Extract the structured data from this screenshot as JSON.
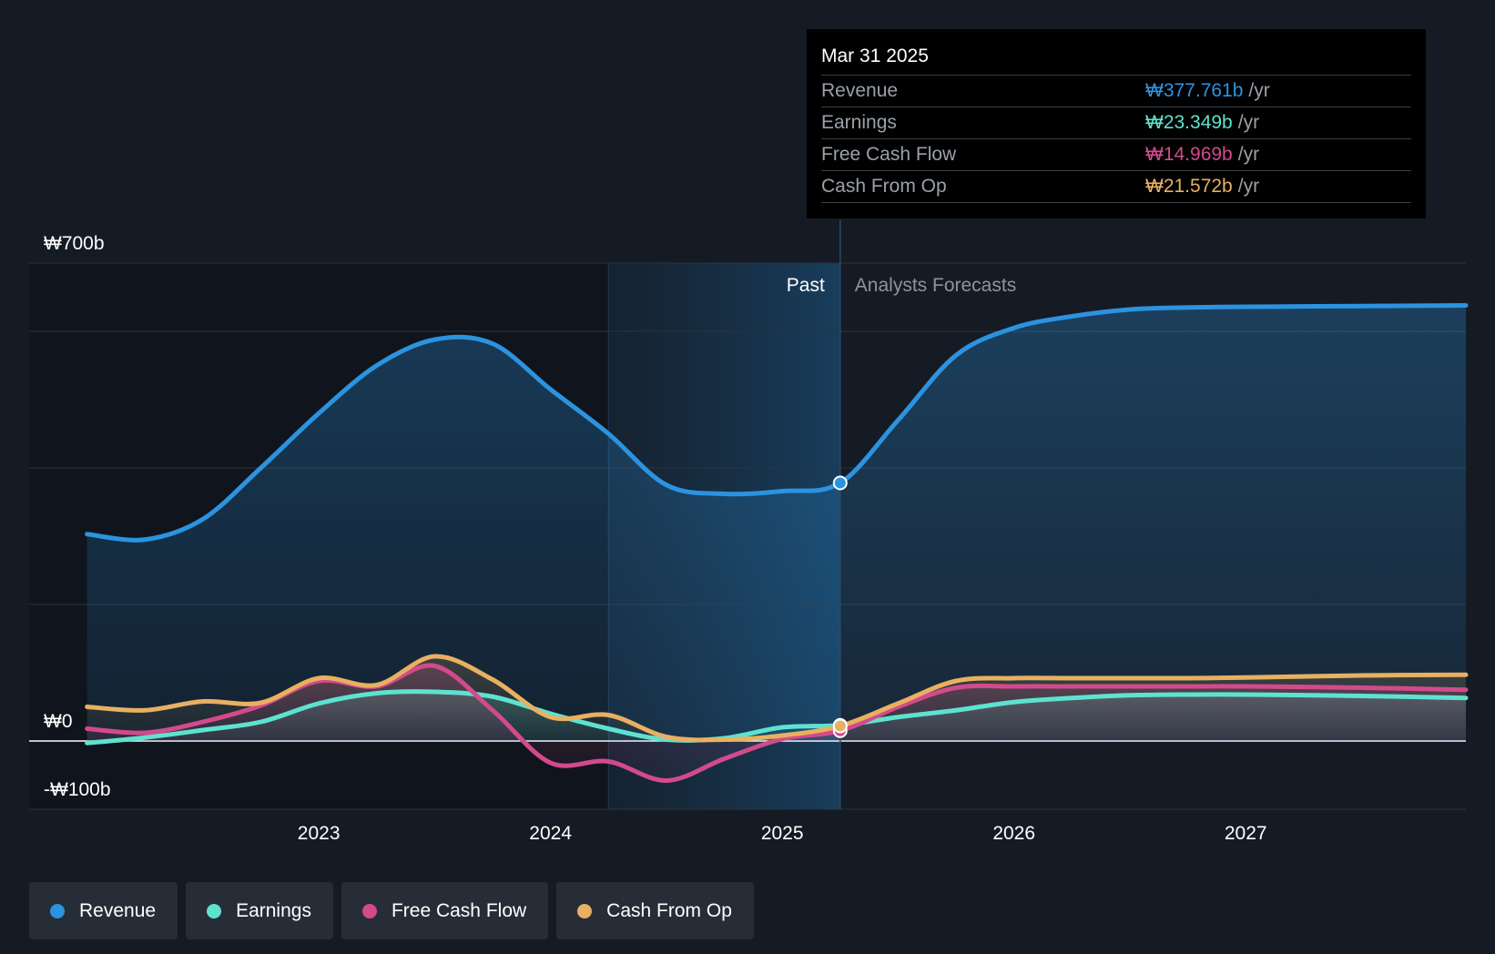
{
  "tooltip": {
    "date": "Mar 31 2025",
    "rows": [
      {
        "label": "Revenue",
        "value": "₩377.761b",
        "unit": "/yr",
        "color": "#2b93e0"
      },
      {
        "label": "Earnings",
        "value": "₩23.349b",
        "unit": "/yr",
        "color": "#5ee2d0"
      },
      {
        "label": "Free Cash Flow",
        "value": "₩14.969b",
        "unit": "/yr",
        "color": "#d34a8c"
      },
      {
        "label": "Cash From Op",
        "value": "₩21.572b",
        "unit": "/yr",
        "color": "#e8b060"
      }
    ]
  },
  "legend": [
    {
      "label": "Revenue",
      "color": "#2b93e0"
    },
    {
      "label": "Earnings",
      "color": "#5ee2d0"
    },
    {
      "label": "Free Cash Flow",
      "color": "#d34a8c"
    },
    {
      "label": "Cash From Op",
      "color": "#e8b060"
    }
  ],
  "chart_data": {
    "type": "line",
    "title": "",
    "section_labels": {
      "past": "Past",
      "forecast": "Analysts Forecasts"
    },
    "y_tick_labels": [
      {
        "value": 700,
        "label": "₩700b"
      },
      {
        "value": 0,
        "label": "₩0"
      },
      {
        "value": -100,
        "label": "-₩100b"
      }
    ],
    "x_tick_labels": [
      {
        "value": 2023.0,
        "label": "2023"
      },
      {
        "value": 2024.0,
        "label": "2024"
      },
      {
        "value": 2025.0,
        "label": "2025"
      },
      {
        "value": 2026.0,
        "label": "2026"
      },
      {
        "value": 2027.0,
        "label": "2027"
      }
    ],
    "xlim": [
      2021.75,
      2027.95
    ],
    "ylim": [
      -100,
      700
    ],
    "grid_lines": [
      700,
      600,
      400,
      200,
      0,
      -100
    ],
    "past_shade_start": 2024.25,
    "past_end": 2025.25,
    "highlight_date": 2025.25,
    "series": [
      {
        "name": "Revenue",
        "color": "#2b93e0",
        "area": true,
        "points": [
          [
            2022.0,
            303
          ],
          [
            2022.25,
            295
          ],
          [
            2022.5,
            325
          ],
          [
            2022.75,
            400
          ],
          [
            2023.0,
            480
          ],
          [
            2023.25,
            550
          ],
          [
            2023.5,
            588
          ],
          [
            2023.75,
            582
          ],
          [
            2024.0,
            515
          ],
          [
            2024.25,
            450
          ],
          [
            2024.5,
            375
          ],
          [
            2024.75,
            362
          ],
          [
            2025.0,
            366
          ],
          [
            2025.25,
            378
          ],
          [
            2025.5,
            470
          ],
          [
            2025.75,
            565
          ],
          [
            2026.0,
            605
          ],
          [
            2026.25,
            622
          ],
          [
            2026.5,
            632
          ],
          [
            2026.75,
            635
          ],
          [
            2027.0,
            636
          ],
          [
            2027.5,
            637
          ],
          [
            2027.95,
            638
          ]
        ]
      },
      {
        "name": "Earnings",
        "color": "#5ee2d0",
        "area": true,
        "points": [
          [
            2022.0,
            -3
          ],
          [
            2022.25,
            5
          ],
          [
            2022.5,
            16
          ],
          [
            2022.75,
            28
          ],
          [
            2023.0,
            55
          ],
          [
            2023.25,
            70
          ],
          [
            2023.5,
            72
          ],
          [
            2023.75,
            65
          ],
          [
            2024.0,
            40
          ],
          [
            2024.25,
            18
          ],
          [
            2024.5,
            2
          ],
          [
            2024.75,
            4
          ],
          [
            2025.0,
            20
          ],
          [
            2025.25,
            23
          ],
          [
            2025.5,
            35
          ],
          [
            2025.75,
            45
          ],
          [
            2026.0,
            57
          ],
          [
            2026.25,
            63
          ],
          [
            2026.5,
            67
          ],
          [
            2026.75,
            68
          ],
          [
            2027.0,
            68
          ],
          [
            2027.5,
            66
          ],
          [
            2027.95,
            63
          ]
        ]
      },
      {
        "name": "Free Cash Flow",
        "color": "#d34a8c",
        "area": true,
        "points": [
          [
            2022.0,
            18
          ],
          [
            2022.25,
            12
          ],
          [
            2022.5,
            28
          ],
          [
            2022.75,
            52
          ],
          [
            2023.0,
            88
          ],
          [
            2023.25,
            80
          ],
          [
            2023.5,
            110
          ],
          [
            2023.75,
            45
          ],
          [
            2024.0,
            -32
          ],
          [
            2024.25,
            -30
          ],
          [
            2024.5,
            -58
          ],
          [
            2024.75,
            -26
          ],
          [
            2025.0,
            3
          ],
          [
            2025.25,
            15
          ],
          [
            2025.5,
            50
          ],
          [
            2025.75,
            78
          ],
          [
            2026.0,
            80
          ],
          [
            2026.25,
            80
          ],
          [
            2026.5,
            80
          ],
          [
            2026.75,
            80
          ],
          [
            2027.0,
            80
          ],
          [
            2027.5,
            78
          ],
          [
            2027.95,
            75
          ]
        ]
      },
      {
        "name": "Cash From Op",
        "color": "#e8b060",
        "area": true,
        "points": [
          [
            2022.0,
            50
          ],
          [
            2022.25,
            45
          ],
          [
            2022.5,
            58
          ],
          [
            2022.75,
            56
          ],
          [
            2023.0,
            92
          ],
          [
            2023.25,
            82
          ],
          [
            2023.5,
            124
          ],
          [
            2023.75,
            90
          ],
          [
            2024.0,
            35
          ],
          [
            2024.25,
            38
          ],
          [
            2024.5,
            6
          ],
          [
            2024.75,
            2
          ],
          [
            2025.0,
            8
          ],
          [
            2025.25,
            22
          ],
          [
            2025.5,
            55
          ],
          [
            2025.75,
            88
          ],
          [
            2026.0,
            92
          ],
          [
            2026.25,
            92
          ],
          [
            2026.5,
            92
          ],
          [
            2026.75,
            92
          ],
          [
            2027.0,
            93
          ],
          [
            2027.5,
            96
          ],
          [
            2027.95,
            97
          ]
        ]
      }
    ]
  }
}
